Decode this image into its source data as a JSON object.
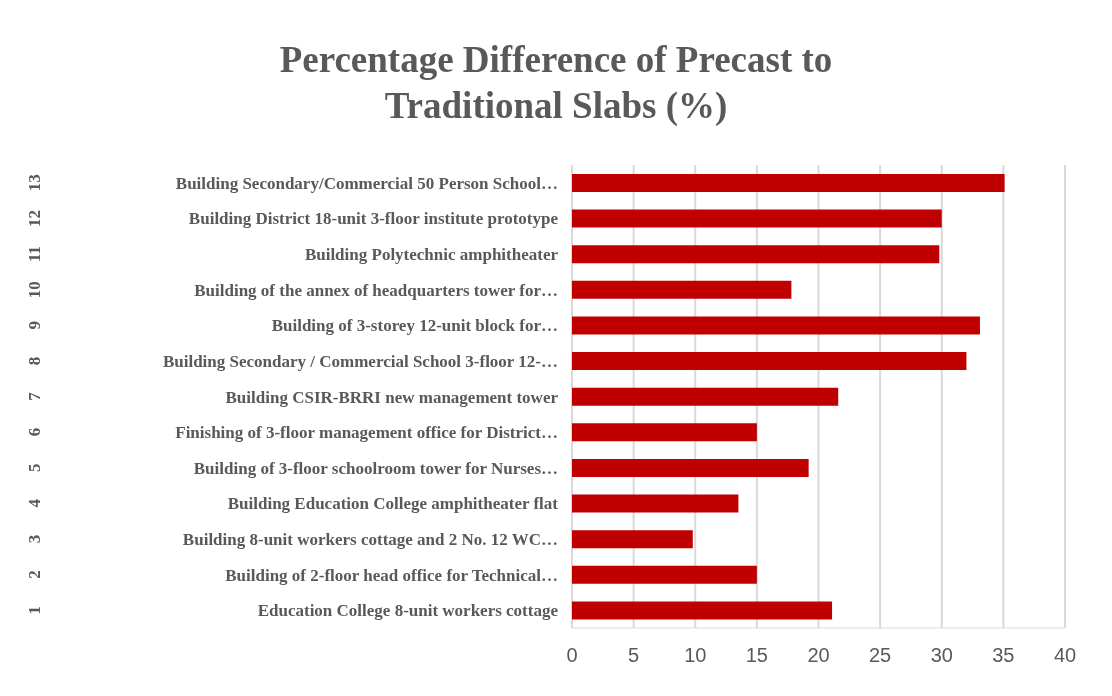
{
  "chart_data": {
    "type": "bar",
    "orientation": "horizontal",
    "title": "Percentage Difference of Precast to Traditional Slabs (%)",
    "categories": [
      "Building Secondary/Commercial 50 Person School…",
      "Building District 18-unit 3-floor institute prototype",
      "Building Polytechnic amphitheater",
      "Building of the annex of headquarters tower for…",
      "Building of 3-storey 12-unit block for…",
      "Building Secondary / Commercial School 3-floor 12-…",
      "Building CSIR-BRRI new management tower",
      "Finishing of 3-floor management office for District…",
      "Building of 3-floor schoolroom tower for Nurses…",
      "Building Education College amphitheater flat",
      "Building 8-unit workers cottage and 2 No. 12 WC…",
      "Building of 2-floor head office for Technical…",
      "Education College 8-unit workers cottage"
    ],
    "y2_categories": [
      "13",
      "12",
      "11",
      "10",
      "9",
      "8",
      "7",
      "6",
      "5",
      "4",
      "3",
      "2",
      "1"
    ],
    "values": [
      35.1,
      30.0,
      29.8,
      17.8,
      33.1,
      32.0,
      21.6,
      15.0,
      19.2,
      13.5,
      9.8,
      15.0,
      21.1
    ],
    "color": "#c00000",
    "xlim": [
      0,
      40
    ],
    "xticks": [
      0,
      5,
      10,
      15,
      20,
      25,
      30,
      35,
      40
    ],
    "grid": "x"
  }
}
